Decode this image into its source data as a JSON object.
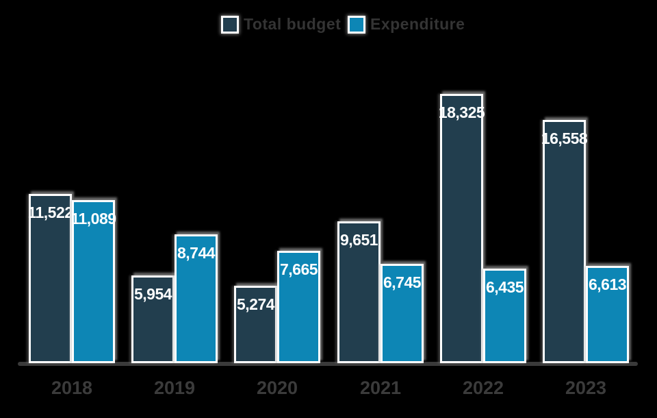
{
  "legend": [
    {
      "label": "Total budget",
      "color": "#223E4E"
    },
    {
      "label": "Expenditure",
      "color": "#0D86B5"
    }
  ],
  "chart_data": {
    "type": "bar",
    "title": "",
    "xlabel": "",
    "ylabel": "",
    "categories": [
      "2018",
      "2019",
      "2020",
      "2021",
      "2022",
      "2023"
    ],
    "series": [
      {
        "name": "Total budget",
        "color": "#223E4E",
        "values": [
          11522,
          5954,
          5274,
          9651,
          18325,
          16558
        ]
      },
      {
        "name": "Expenditure",
        "color": "#0D86B5",
        "values": [
          11089,
          8744,
          7665,
          6745,
          6435,
          6613
        ]
      }
    ],
    "value_labels_shown": true,
    "value_label_format": "thousands-comma",
    "ylim": [
      0,
      18800
    ],
    "grid": false,
    "legend_position": "top-center",
    "background_color": "#000000",
    "bar_border_color": "#FFFFFF",
    "axis_line_color": "#3A3A3A",
    "value_label_color": "#FFFFFF",
    "axis_text_color": "#3B3B3B",
    "legibility_note": "legend and x-axis tick text are rendered in dark gray on the black background and are not clearly legible in the source image; those strings are best-effort"
  }
}
